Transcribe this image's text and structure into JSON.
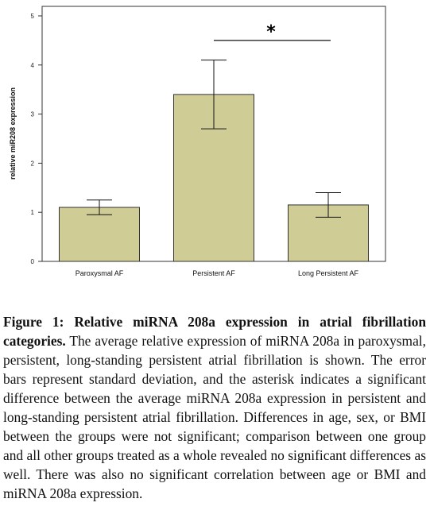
{
  "chart_data": {
    "type": "bar",
    "categories": [
      "Paroxysmal AF",
      "Persistent AF",
      "Long Persistent AF"
    ],
    "values": [
      1.1,
      3.4,
      1.15
    ],
    "error_low": [
      0.95,
      2.7,
      0.9
    ],
    "error_high": [
      1.25,
      4.1,
      1.4
    ],
    "ylabel": "relative miR208 expression",
    "ylim": [
      0,
      5
    ],
    "yticks": [
      "0",
      "1",
      "2",
      "3",
      "4",
      "5"
    ],
    "significance": {
      "from": 1,
      "to": 2,
      "label": "*",
      "y": 4.5
    },
    "bar_color": "#cfcc96",
    "grid": false
  },
  "caption": {
    "title": "Figure 1: Relative miRNA 208a expression in atrial fibrillation categories.",
    "text": "The average relative expression of miRNA 208a in paroxysmal, persistent, long-standing persistent atrial fibrillation is shown. The error bars represent standard deviation, and the asterisk indicates a significant difference between the average miRNA 208a expression in persistent and long-standing persistent atrial fibrillation. Differences in age, sex, or BMI between the groups were not significant; comparison between one group and all other groups treated as a whole revealed no significant differences as well. There was also no significant correlation between age or BMI and miRNA 208a expression."
  }
}
